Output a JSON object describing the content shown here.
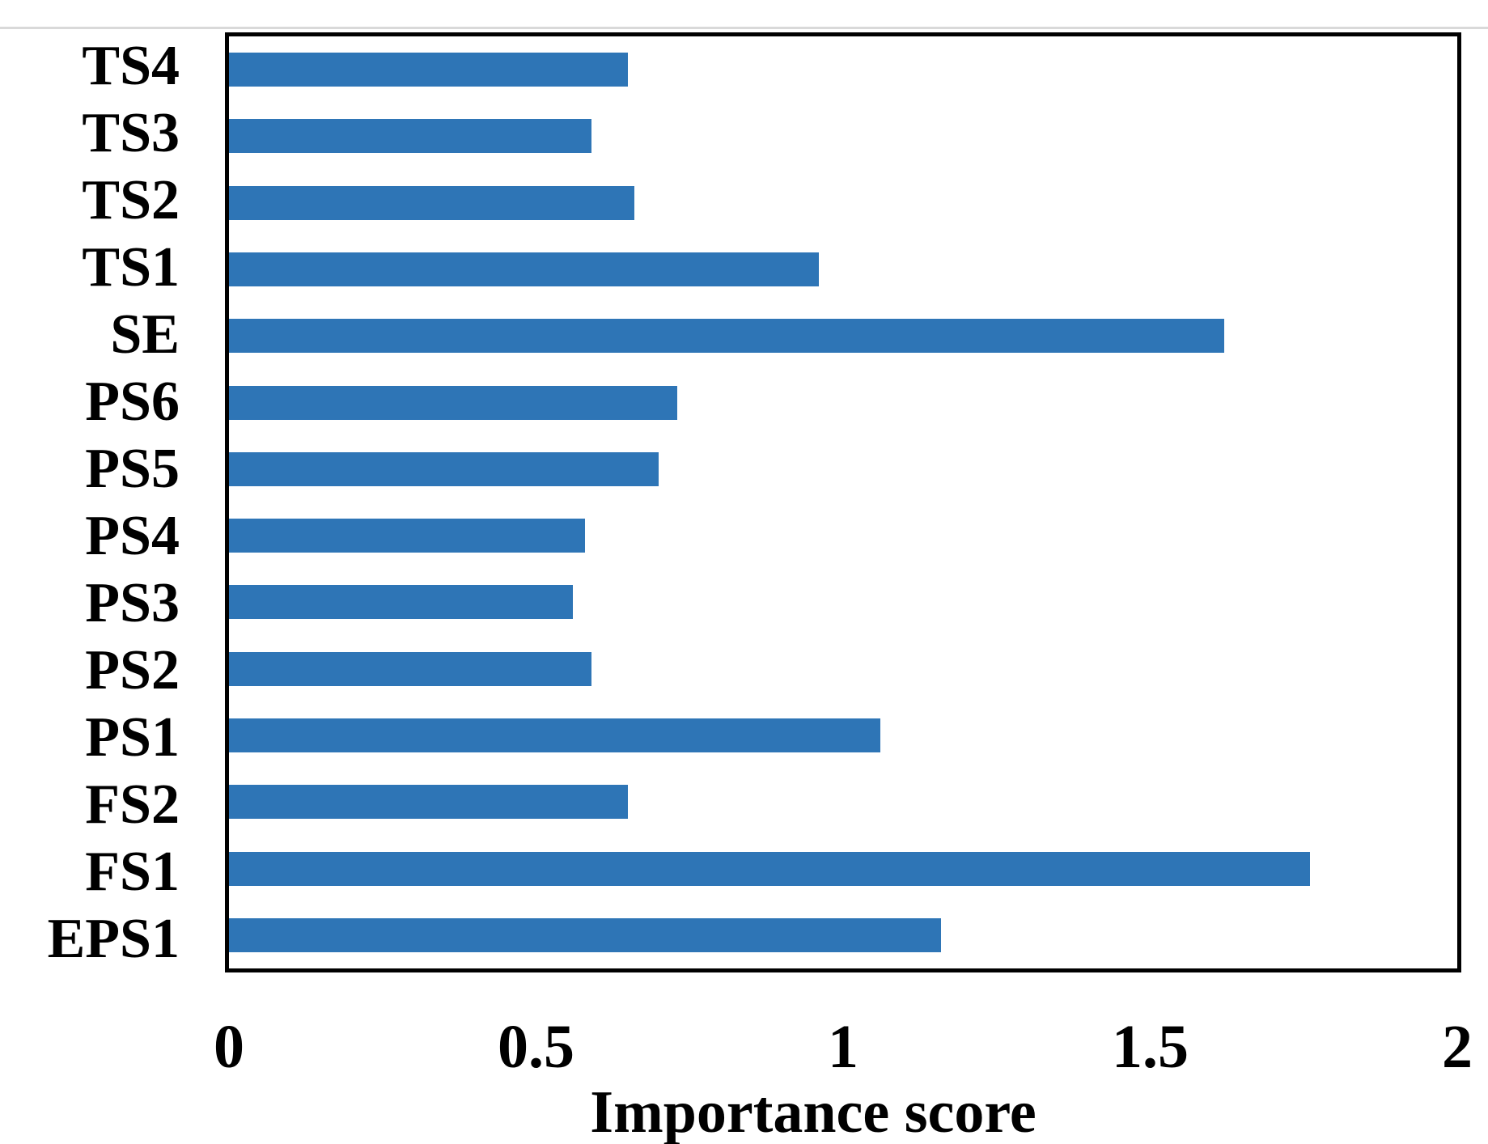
{
  "chart_data": {
    "type": "bar",
    "orientation": "horizontal",
    "title": "",
    "xlabel": "Importance score",
    "ylabel": "",
    "categories_top_to_bottom": [
      "TS4",
      "TS3",
      "TS2",
      "TS1",
      "SE",
      "PS6",
      "PS5",
      "PS4",
      "PS3",
      "PS2",
      "PS1",
      "FS2",
      "FS1",
      "EPS1"
    ],
    "values": [
      0.65,
      0.59,
      0.66,
      0.96,
      1.62,
      0.73,
      0.7,
      0.58,
      0.56,
      0.59,
      1.06,
      0.65,
      1.76,
      1.16
    ],
    "xlim": [
      0,
      2
    ],
    "xticks": [
      0,
      0.5,
      1,
      1.5,
      2
    ],
    "xtick_labels": [
      "0",
      "0.5",
      "1",
      "1.5",
      "2"
    ],
    "grid": false,
    "legend": "none",
    "bar_color": "#2E75B6",
    "plot_border_color": "#000000",
    "page_edge_line_color": "#d9d9d9"
  }
}
